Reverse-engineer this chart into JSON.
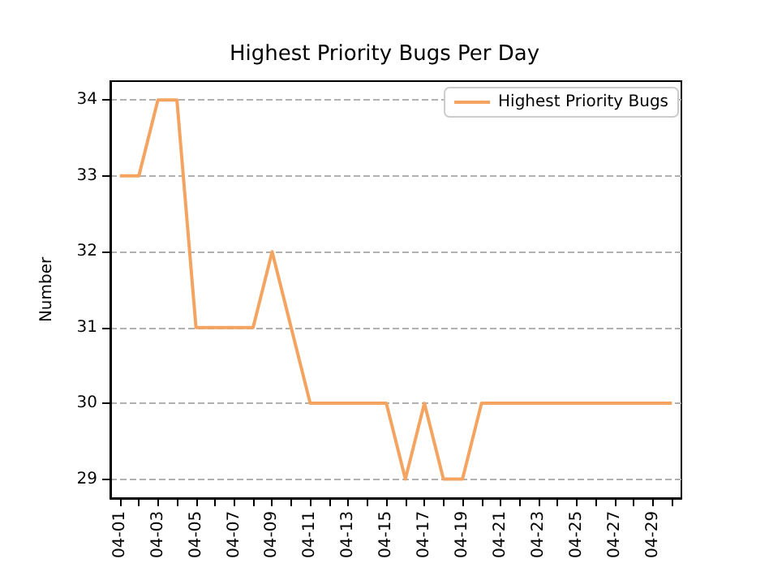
{
  "chart_data": {
    "type": "line",
    "title": "Highest Priority Bugs Per Day",
    "ylabel": "Number",
    "categories": [
      "04-01",
      null,
      "04-03",
      null,
      "04-05",
      null,
      "04-07",
      null,
      "04-09",
      null,
      "04-11",
      null,
      "04-13",
      null,
      "04-15",
      null,
      "04-17",
      null,
      "04-19",
      null,
      "04-21",
      null,
      "04-23",
      null,
      "04-25",
      null,
      "04-27",
      null,
      "04-29",
      null
    ],
    "series": [
      {
        "name": "Highest Priority Bugs",
        "color": "#f4a460",
        "values": [
          33,
          33,
          34,
          34,
          31,
          31,
          31,
          31,
          32,
          31,
          30,
          30,
          30,
          30,
          30,
          29,
          30,
          29,
          29,
          30,
          30,
          30,
          30,
          30,
          30,
          30,
          30,
          30,
          30,
          30
        ]
      }
    ],
    "ylim": [
      28.75,
      34.25
    ],
    "yticks": [
      29,
      30,
      31,
      32,
      33,
      34
    ],
    "grid": "y",
    "legend": "top right",
    "marker": "none",
    "line_style": "solid"
  }
}
